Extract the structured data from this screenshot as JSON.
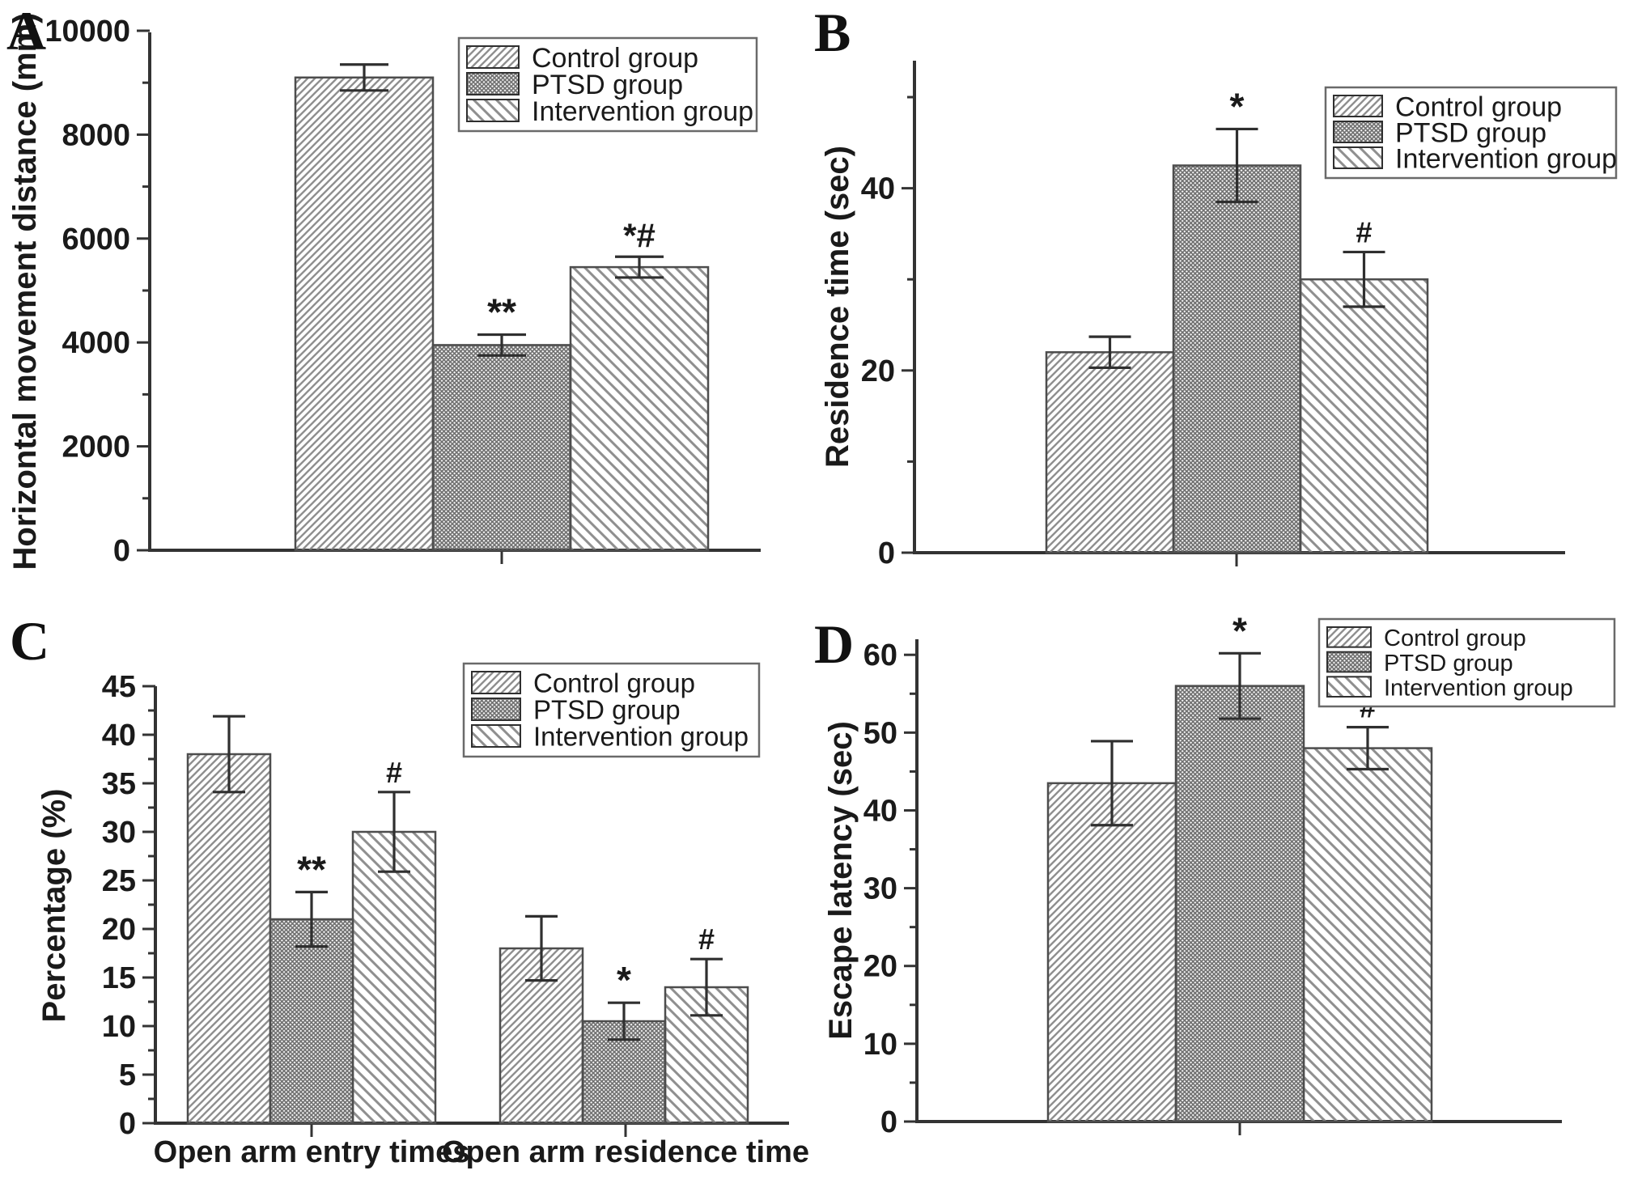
{
  "figure": {
    "background": "#ffffff",
    "colors": {
      "axis": "#333333",
      "text": "#1a1a1a",
      "bar_outline": "#4d4d4d",
      "hatch_line": "#8f8f8f",
      "mesh_line": "#707070",
      "error_bar": "#2f2f2f",
      "legend_border": "#6a6a6a"
    },
    "pattern_names": {
      "control": "diagonal-up-hatch",
      "ptsd": "fine-crosshatch-mesh",
      "intervention": "diagonal-down-hatch"
    }
  },
  "chart_data": [
    {
      "panel_label": "A",
      "type": "bar",
      "ylabel": "Horizontal movement distance (mm)",
      "xlabel": "",
      "ylim": [
        0,
        10000
      ],
      "yticks": [
        0,
        2000,
        4000,
        6000,
        8000,
        10000
      ],
      "minor_step": 1000,
      "grid": false,
      "legend_position": "top-right",
      "categories": [
        ""
      ],
      "series": [
        {
          "name": "Control group",
          "pattern": "control",
          "values": [
            9100
          ],
          "errors": [
            250
          ],
          "annotations": [
            ""
          ]
        },
        {
          "name": "PTSD group",
          "pattern": "ptsd",
          "values": [
            3950
          ],
          "errors": [
            200
          ],
          "annotations": [
            "**"
          ]
        },
        {
          "name": "Intervention group",
          "pattern": "intervention",
          "values": [
            5450
          ],
          "errors": [
            200
          ],
          "annotations": [
            "*#"
          ]
        }
      ]
    },
    {
      "panel_label": "B",
      "type": "bar",
      "ylabel": "Residence time (sec)",
      "xlabel": "",
      "ylim": [
        0,
        54
      ],
      "yticks": [
        0,
        20,
        40
      ],
      "minor_step": 10,
      "grid": false,
      "legend_position": "top-right",
      "categories": [
        ""
      ],
      "series": [
        {
          "name": "Control group",
          "pattern": "control",
          "values": [
            22
          ],
          "errors": [
            1.7
          ],
          "annotations": [
            ""
          ]
        },
        {
          "name": "PTSD group",
          "pattern": "ptsd",
          "values": [
            42.5
          ],
          "errors": [
            4
          ],
          "annotations": [
            "*"
          ]
        },
        {
          "name": "Intervention group",
          "pattern": "intervention",
          "values": [
            30
          ],
          "errors": [
            3
          ],
          "annotations": [
            "#"
          ]
        }
      ]
    },
    {
      "panel_label": "C",
      "type": "bar",
      "ylabel": "Percentage (%)",
      "xlabel": "",
      "ylim": [
        0,
        45
      ],
      "yticks": [
        0,
        5,
        10,
        15,
        20,
        25,
        30,
        35,
        40,
        45
      ],
      "minor_step": 2.5,
      "grid": false,
      "legend_position": "top-right",
      "categories": [
        "Open arm entry times",
        "Open arm residence time"
      ],
      "series": [
        {
          "name": "Control group",
          "pattern": "control",
          "values": [
            38,
            18
          ],
          "errors": [
            3.9,
            3.3
          ],
          "annotations": [
            "",
            ""
          ]
        },
        {
          "name": "PTSD group",
          "pattern": "ptsd",
          "values": [
            21,
            10.5
          ],
          "errors": [
            2.8,
            1.9
          ],
          "annotations": [
            "**",
            "*"
          ]
        },
        {
          "name": "Intervention group",
          "pattern": "intervention",
          "values": [
            30,
            14
          ],
          "errors": [
            4.1,
            2.9
          ],
          "annotations": [
            "#",
            "#"
          ]
        }
      ]
    },
    {
      "panel_label": "D",
      "type": "bar",
      "ylabel": "Escape latency (sec)",
      "xlabel": "",
      "ylim": [
        0,
        62
      ],
      "yticks": [
        0,
        10,
        20,
        30,
        40,
        50,
        60
      ],
      "minor_step": 5,
      "grid": false,
      "legend_position": "top-right",
      "categories": [
        ""
      ],
      "series": [
        {
          "name": "Control group",
          "pattern": "control",
          "values": [
            43.5
          ],
          "errors": [
            5.4
          ],
          "annotations": [
            ""
          ]
        },
        {
          "name": "PTSD group",
          "pattern": "ptsd",
          "values": [
            56
          ],
          "errors": [
            4.2
          ],
          "annotations": [
            "*"
          ]
        },
        {
          "name": "Intervention group",
          "pattern": "intervention",
          "values": [
            48
          ],
          "errors": [
            2.7
          ],
          "annotations": [
            "#"
          ]
        }
      ]
    }
  ]
}
